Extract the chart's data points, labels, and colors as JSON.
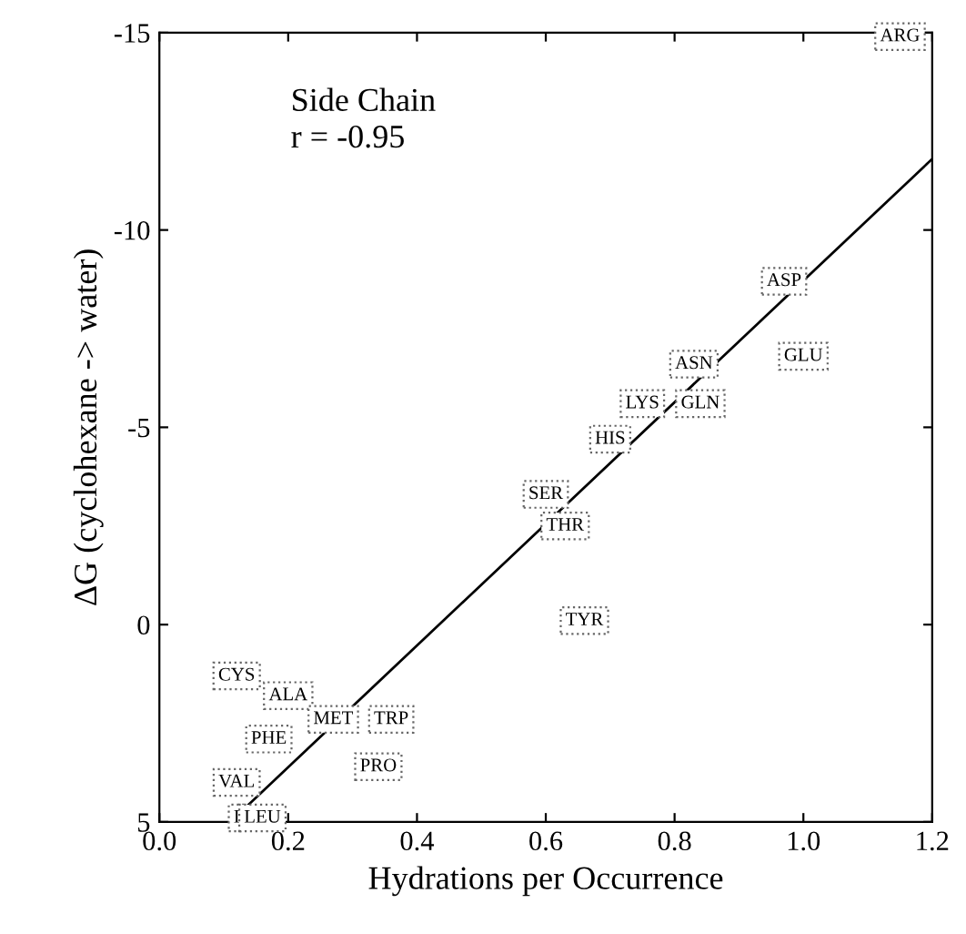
{
  "chart_data": {
    "type": "scatter",
    "xlabel": "Hydrations per Occurrence",
    "ylabel": "ΔG (cyclohexane -> water)",
    "xlim": [
      0,
      1.2
    ],
    "ylim": [
      5,
      -15
    ],
    "xticks": [
      {
        "value": 0,
        "label": "0.0"
      },
      0.2,
      0.4,
      0.6,
      0.8,
      {
        "value": 1.0,
        "label": "1.0"
      },
      1.2
    ],
    "yticks": [
      -15,
      -10,
      -5,
      0,
      5
    ],
    "grid": false,
    "legend": false,
    "series": [
      {
        "color": "#555555",
        "x": [
          1.15,
          0.97,
          1.0,
          0.83,
          0.75,
          0.84,
          0.7,
          0.6,
          0.63,
          0.66,
          0.12,
          0.2,
          0.27,
          0.36,
          0.17,
          0.34,
          0.12,
          0.12,
          0.16
        ],
        "values": [
          -14.9,
          -8.7,
          -6.8,
          -6.6,
          -5.6,
          -5.6,
          -4.7,
          -3.3,
          -2.5,
          -0.1,
          1.3,
          1.8,
          2.4,
          2.4,
          2.9,
          3.6,
          4.0,
          4.9,
          4.9
        ]
      },
      {
        "type": "line",
        "color": "#000000",
        "line_style": "solid",
        "x": [
          0.11,
          1.2
        ],
        "values": [
          5,
          -11.8
        ]
      }
    ],
    "annotations": [
      {
        "text": "ARG",
        "x": 1.15,
        "y": -14.9
      },
      {
        "text": "ASP",
        "x": 0.97,
        "y": -8.7
      },
      {
        "text": "GLU",
        "x": 1.0,
        "y": -6.8
      },
      {
        "text": "ASN",
        "x": 0.83,
        "y": -6.6
      },
      {
        "text": "LYS",
        "x": 0.75,
        "y": -5.6
      },
      {
        "text": "GLN",
        "x": 0.84,
        "y": -5.6
      },
      {
        "text": "HIS",
        "x": 0.7,
        "y": -4.7
      },
      {
        "text": "SER",
        "x": 0.6,
        "y": -3.3
      },
      {
        "text": "THR",
        "x": 0.63,
        "y": -2.5
      },
      {
        "text": "TYR",
        "x": 0.66,
        "y": -0.1
      },
      {
        "text": "CYS",
        "x": 0.12,
        "y": 1.3
      },
      {
        "text": "ALA",
        "x": 0.2,
        "y": 1.8
      },
      {
        "text": "MET",
        "x": 0.27,
        "y": 2.4
      },
      {
        "text": "TRP",
        "x": 0.36,
        "y": 2.4
      },
      {
        "text": "PHE",
        "x": 0.17,
        "y": 2.9
      },
      {
        "text": "PRO",
        "x": 0.34,
        "y": 3.6
      },
      {
        "text": "VAL",
        "x": 0.12,
        "y": 4.0
      },
      {
        "text": "I",
        "x": 0.12,
        "y": 4.9
      },
      {
        "text": "LEU",
        "x": 0.16,
        "y": 4.9
      },
      "Side Chain\nr = -0.95"
    ]
  }
}
